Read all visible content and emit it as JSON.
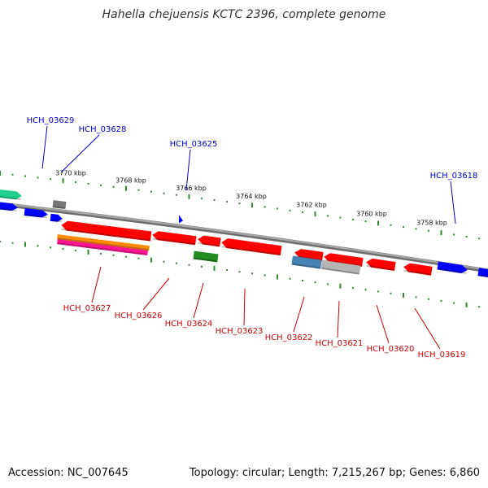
{
  "title": "Hahella chejuensis KCTC 2396, complete genome",
  "footer": {
    "accession": "Accession: NC_007645",
    "stats": "Topology: circular; Length: 7,215,267 bp; Genes: 6,860"
  },
  "colors": {
    "backbone": "#8c8c8c",
    "ticks": "#2e8b2e",
    "forward_label": "#0000cc",
    "reverse_label": "#cc0000"
  },
  "kbp_labels": [
    "3770 kbp",
    "3768 kbp",
    "3766 kbp",
    "3764 kbp",
    "3762 kbp",
    "3760 kbp",
    "3758 kbp"
  ],
  "forward_genes": [
    {
      "id": "HCH_03629",
      "color": "#0000ff"
    },
    {
      "id": "HCH_03628",
      "color": "#0000ff"
    },
    {
      "id": "HCH_03625",
      "color": "#0000ff"
    },
    {
      "id": "HCH_03618",
      "color": "#0000ff"
    }
  ],
  "reverse_genes": [
    {
      "id": "HCH_03627",
      "color": "#ff0000"
    },
    {
      "id": "HCH_03626",
      "color": "#ff0000"
    },
    {
      "id": "HCH_03624",
      "color": "#ff0000"
    },
    {
      "id": "HCH_03623",
      "color": "#ff0000"
    },
    {
      "id": "HCH_03622",
      "color": "#ff0000"
    },
    {
      "id": "HCH_03621",
      "color": "#ff0000"
    },
    {
      "id": "HCH_03620",
      "color": "#ff0000"
    },
    {
      "id": "HCH_03619",
      "color": "#ff0000"
    }
  ]
}
